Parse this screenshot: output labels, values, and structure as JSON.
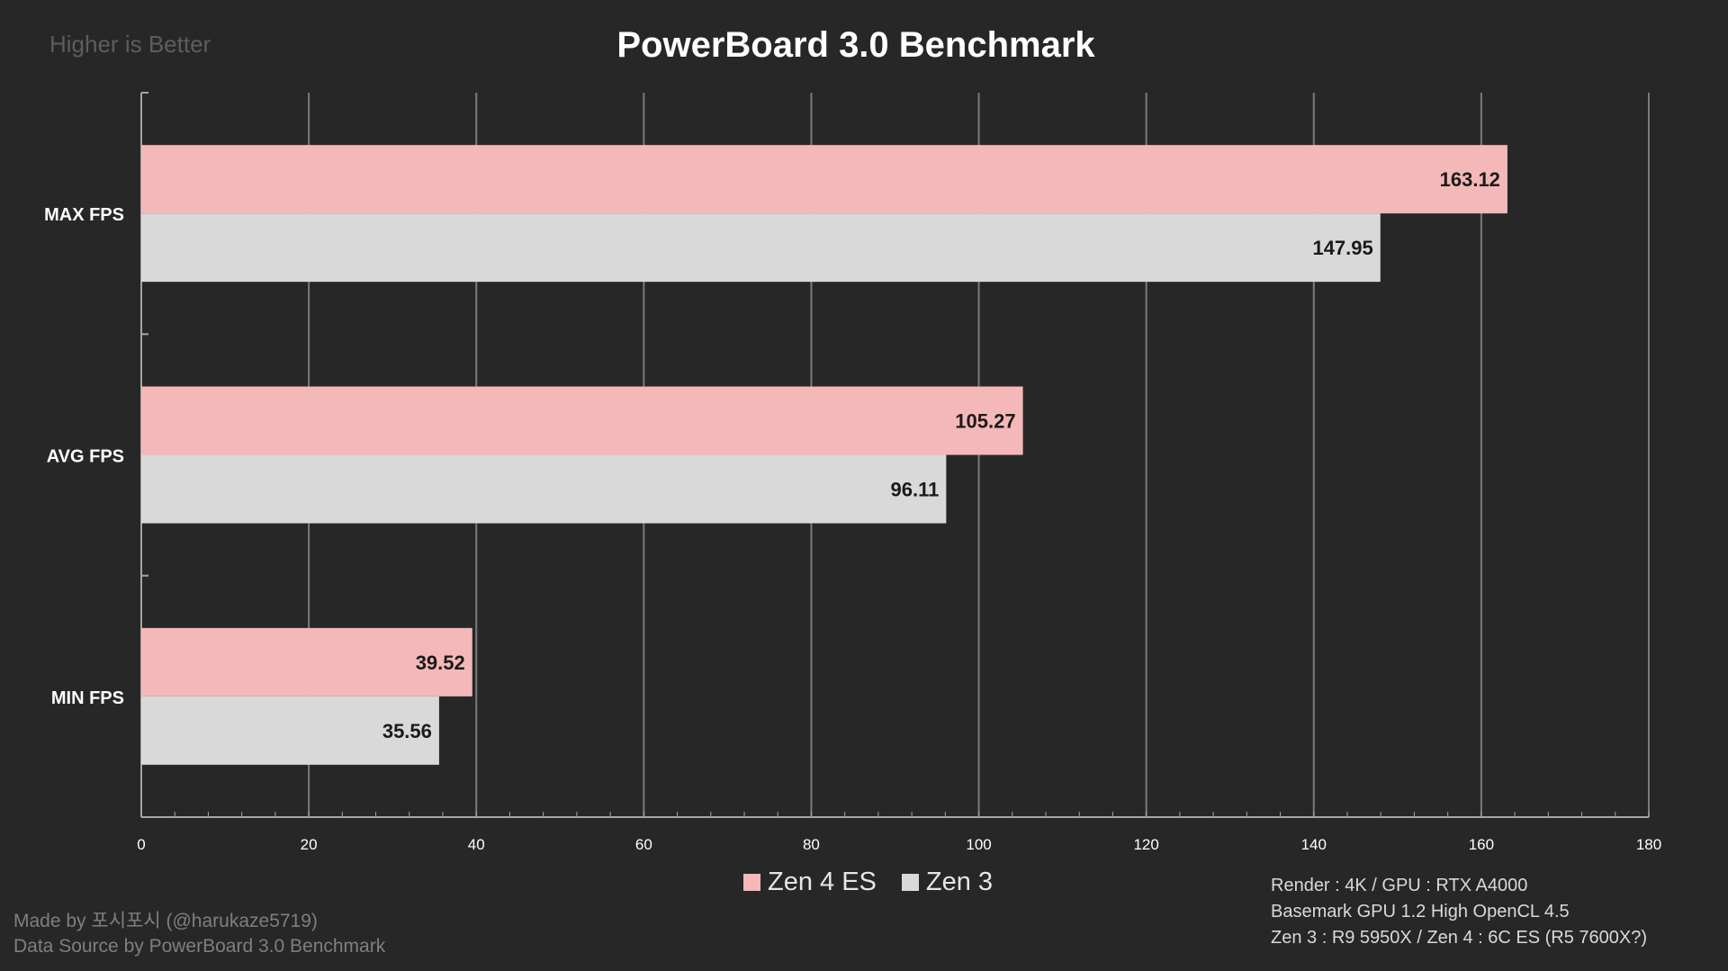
{
  "chart_data": {
    "type": "bar",
    "orientation": "horizontal",
    "title": "PowerBoard 3.0 Benchmark",
    "subtitle": "Higher is Better",
    "categories": [
      "MAX FPS",
      "AVG FPS",
      "MIN FPS"
    ],
    "series": [
      {
        "name": "Zen 4 ES",
        "color": "#f4b8b8",
        "values": [
          163.12,
          105.27,
          39.52
        ]
      },
      {
        "name": "Zen 3",
        "color": "#d9d9d9",
        "values": [
          147.95,
          96.11,
          35.56
        ]
      }
    ],
    "xlim": [
      0,
      180
    ],
    "xticks": [
      0,
      20,
      40,
      60,
      80,
      100,
      120,
      140,
      160,
      180
    ],
    "grid": true,
    "legend_position": "bottom-center"
  },
  "footer": {
    "credit_lines": [
      "Made by 포시포시 (@harukaze5719)",
      "Data Source by PowerBoard 3.0 Benchmark"
    ],
    "note_lines": [
      "Render : 4K / GPU : RTX A4000",
      "Basemark GPU 1.2 High OpenCL 4.5",
      "Zen 3 : R9 5950X / Zen 4 : 6C ES (R5 7600X?)"
    ]
  },
  "colors": {
    "background": "#272727",
    "grid": "#7a7a7a",
    "axis": "#a6a6a6"
  }
}
